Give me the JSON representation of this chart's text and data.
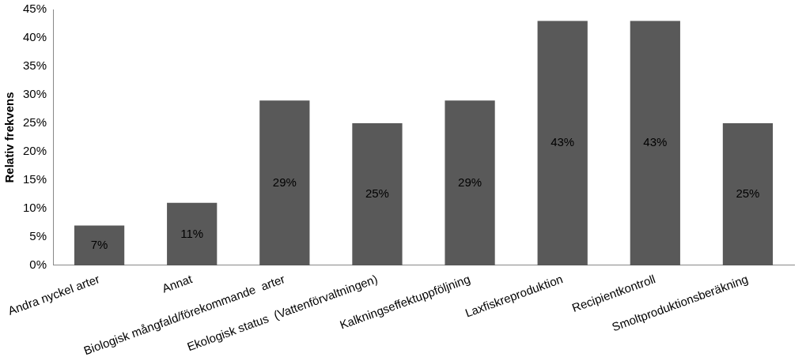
{
  "chart_data": {
    "type": "bar",
    "ylabel": "Relativ frekvens",
    "categories": [
      "Andra nyckel arter",
      "Annat",
      "Biologisk mångfald/förekommande  arter",
      "Ekologisk status  (Vattenförvaltningen)",
      "Kalkningseffektuppföljning",
      "Laxfiskreproduktion",
      "Recipientkontroll",
      "Smoltproduktionsberäkning"
    ],
    "values": [
      7,
      11,
      29,
      25,
      29,
      43,
      43,
      25
    ],
    "color": "#595959",
    "ylim": [
      0,
      45
    ],
    "yticks": [
      {
        "value": 0,
        "label": "0%"
      },
      {
        "value": 5,
        "label": "5%"
      },
      {
        "value": 10,
        "label": "10%"
      },
      {
        "value": 15,
        "label": "15%"
      },
      {
        "value": 20,
        "label": "20%"
      },
      {
        "value": 25,
        "label": "25%"
      },
      {
        "value": 30,
        "label": "30%"
      },
      {
        "value": 35,
        "label": "35%"
      },
      {
        "value": 40,
        "label": "40%"
      },
      {
        "value": 45,
        "label": "45%"
      }
    ],
    "value_labels": [
      "7%",
      "11%",
      "29%",
      "25%",
      "29%",
      "43%",
      "43%",
      "25%"
    ],
    "grid": false,
    "legend": false
  }
}
